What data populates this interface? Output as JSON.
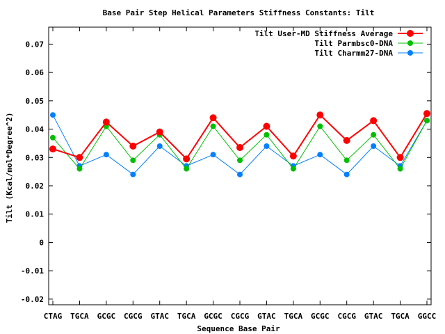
{
  "chart_data": {
    "type": "line",
    "title": "Base Pair Step Helical Parameters Stiffness Constants: Tilt",
    "xlabel": "Sequence Base Pair",
    "ylabel": "Tilt (Kcal/mol*Degree^2)",
    "categories": [
      "CTAG",
      "TGCA",
      "GCGC",
      "CGCG",
      "GTAC",
      "TGCA",
      "GCGC",
      "CGCG",
      "GTAC",
      "TGCA",
      "GCGC",
      "CGCG",
      "GTAC",
      "TGCA",
      "GGCC"
    ],
    "ylim": [
      -0.022,
      0.076
    ],
    "yticks": [
      -0.02,
      -0.01,
      0,
      0.01,
      0.02,
      0.03,
      0.04,
      0.05,
      0.06,
      0.07
    ],
    "ytick_labels": [
      "-0.02",
      "-0.01",
      "0",
      "0.01",
      "0.02",
      "0.03",
      "0.04",
      "0.05",
      "0.06",
      "0.07"
    ],
    "grid": false,
    "legend_position": "top-right",
    "series": [
      {
        "name": "Tilt User-MD Stiffness Average",
        "color": "#ff0000",
        "values": [
          0.033,
          0.03,
          0.0425,
          0.034,
          0.039,
          0.0295,
          0.044,
          0.0335,
          0.041,
          0.0305,
          0.045,
          0.036,
          0.043,
          0.03,
          0.0455
        ]
      },
      {
        "name": "Tilt Parmbsc0-DNA",
        "color": "#00c000",
        "values": [
          0.037,
          0.026,
          0.041,
          0.029,
          0.038,
          0.026,
          0.041,
          0.029,
          0.038,
          0.026,
          0.041,
          0.029,
          0.038,
          0.026,
          0.043
        ]
      },
      {
        "name": "Tilt Charmm27-DNA",
        "color": "#0080ff",
        "values": [
          0.045,
          0.027,
          0.031,
          0.024,
          0.034,
          0.027,
          0.031,
          0.024,
          0.034,
          0.027,
          0.031,
          0.024,
          0.034,
          0.027,
          0.043
        ]
      }
    ]
  }
}
